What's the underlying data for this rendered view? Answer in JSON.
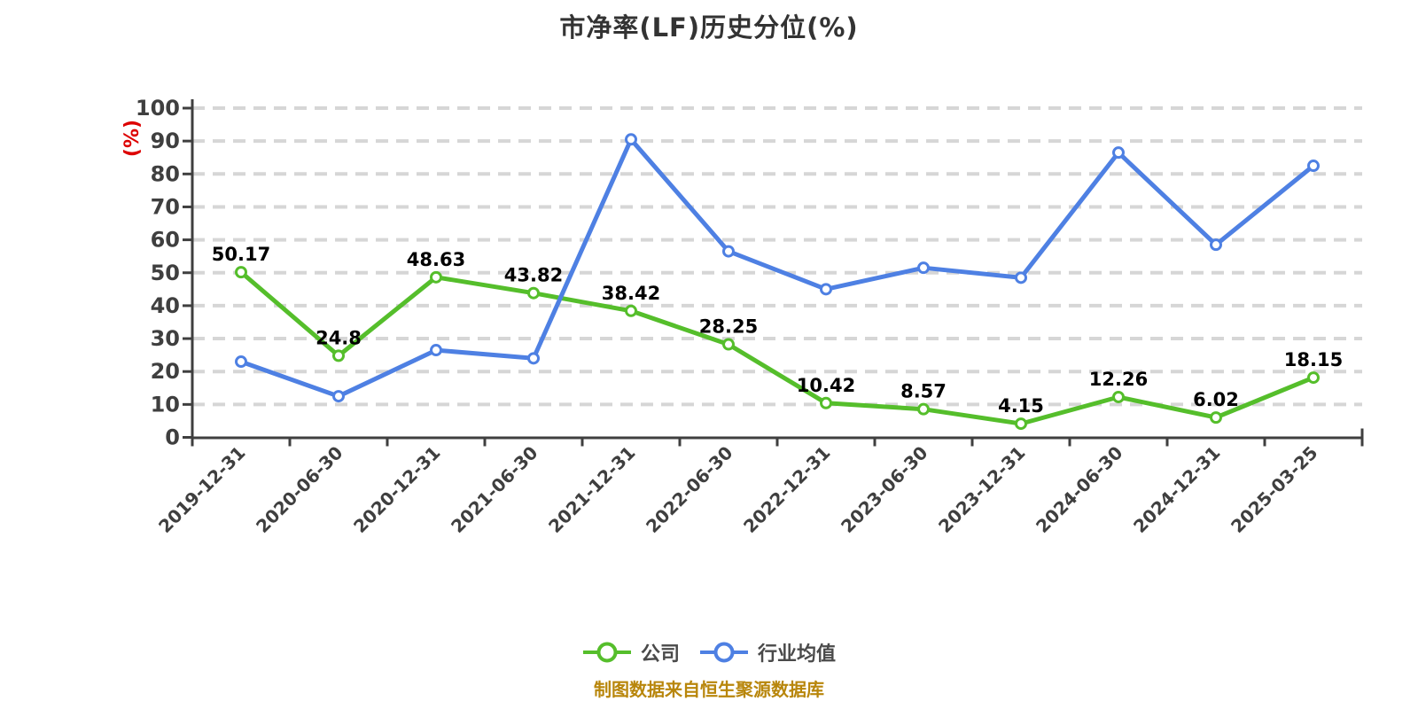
{
  "page": {
    "background": "#ffffff"
  },
  "chart_data": {
    "type": "line",
    "title": "市净率(LF)历史分位(%)",
    "y_axis_name": "(%)",
    "y_axis_name_color": "#dd0000",
    "xlabel": "",
    "ylabel": "(%)",
    "ylim": [
      0,
      100
    ],
    "y_ticks": [
      0,
      10,
      20,
      30,
      40,
      50,
      60,
      70,
      80,
      90,
      100
    ],
    "grid": "horizontal-dashed",
    "grid_color": "#d6d6d6",
    "axis_color": "#3f3f3f",
    "legend_position": "bottom",
    "categories": [
      "2019-12-31",
      "2020-06-30",
      "2020-12-31",
      "2021-06-30",
      "2021-12-31",
      "2022-06-30",
      "2022-12-31",
      "2023-06-30",
      "2023-12-31",
      "2024-06-30",
      "2024-12-31",
      "2025-03-25"
    ],
    "series": [
      {
        "name": "公司",
        "color": "#55be2b",
        "show_labels": true,
        "values": [
          50.17,
          24.8,
          48.63,
          43.82,
          38.42,
          28.25,
          10.42,
          8.57,
          4.15,
          12.26,
          6.02,
          18.15
        ],
        "labels": [
          "50.17",
          "24.8",
          "48.63",
          "43.82",
          "38.42",
          "28.25",
          "10.42",
          "8.57",
          "4.15",
          "12.26",
          "6.02",
          "18.15"
        ]
      },
      {
        "name": "行业均值",
        "color": "#4e80e3",
        "show_labels": false,
        "values": [
          23,
          12.5,
          26.5,
          24,
          90.5,
          56.5,
          45,
          51.5,
          48.5,
          86.5,
          58.5,
          82.5
        ],
        "labels": []
      }
    ]
  },
  "legend": {
    "items": [
      {
        "label": "公司"
      },
      {
        "label": "行业均值"
      }
    ]
  },
  "footer": {
    "text": "制图数据来自恒生聚源数据库",
    "color": "#b8860b"
  }
}
